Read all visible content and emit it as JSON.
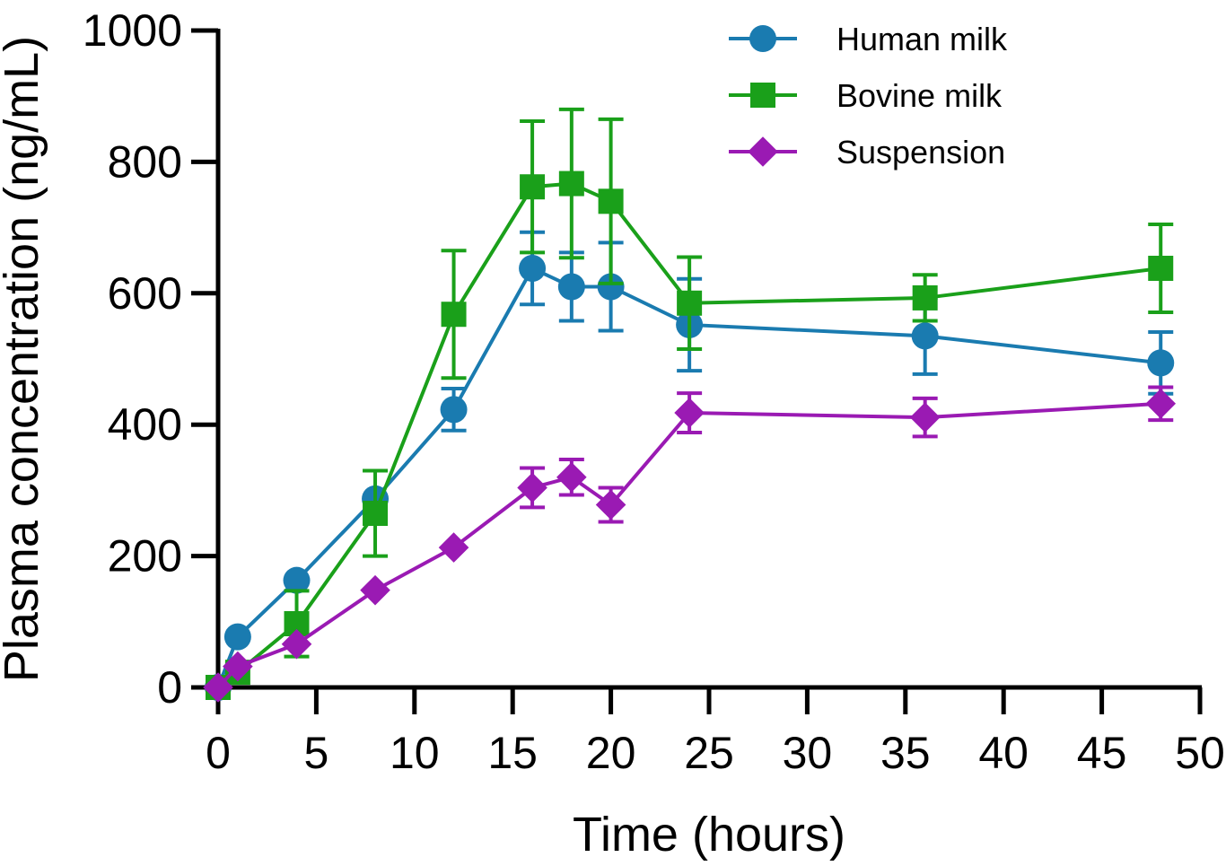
{
  "chart_data": {
    "type": "line",
    "xlabel": "Time (hours)",
    "ylabel": "Plasma concentration (ng/mL)",
    "xlim": [
      0,
      50
    ],
    "ylim": [
      0,
      1000
    ],
    "x_ticks": [
      "0",
      "5",
      "10",
      "15",
      "20",
      "25",
      "30",
      "35",
      "40",
      "45",
      "50"
    ],
    "y_ticks": [
      "0",
      "200",
      "400",
      "600",
      "800",
      "1000"
    ],
    "grid": false,
    "legend_position": "top-right",
    "series": [
      {
        "name": "Human milk",
        "color": "#1a7bb0",
        "marker": "circle",
        "x": [
          0,
          1,
          4,
          8,
          12,
          16,
          18,
          20,
          24,
          36,
          48
        ],
        "y": [
          0,
          77,
          163,
          287,
          423,
          638,
          610,
          610,
          552,
          535,
          494
        ],
        "err": [
          0,
          0,
          0,
          0,
          32,
          55,
          52,
          67,
          70,
          58,
          47
        ]
      },
      {
        "name": "Bovine milk",
        "color": "#1aa01a",
        "marker": "square",
        "x": [
          0,
          1,
          4,
          8,
          12,
          16,
          18,
          20,
          24,
          36,
          48
        ],
        "y": [
          0,
          23,
          97,
          265,
          568,
          762,
          767,
          740,
          585,
          593,
          638
        ],
        "err": [
          0,
          0,
          50,
          65,
          97,
          100,
          113,
          125,
          70,
          35,
          67
        ]
      },
      {
        "name": "Suspension",
        "color": "#9a1ab3",
        "marker": "diamond",
        "x": [
          0,
          1,
          4,
          8,
          12,
          16,
          18,
          20,
          24,
          36,
          48
        ],
        "y": [
          0,
          32,
          66,
          148,
          213,
          304,
          320,
          278,
          418,
          411,
          432
        ],
        "err": [
          0,
          0,
          0,
          0,
          0,
          30,
          27,
          26,
          30,
          29,
          25
        ]
      }
    ]
  }
}
